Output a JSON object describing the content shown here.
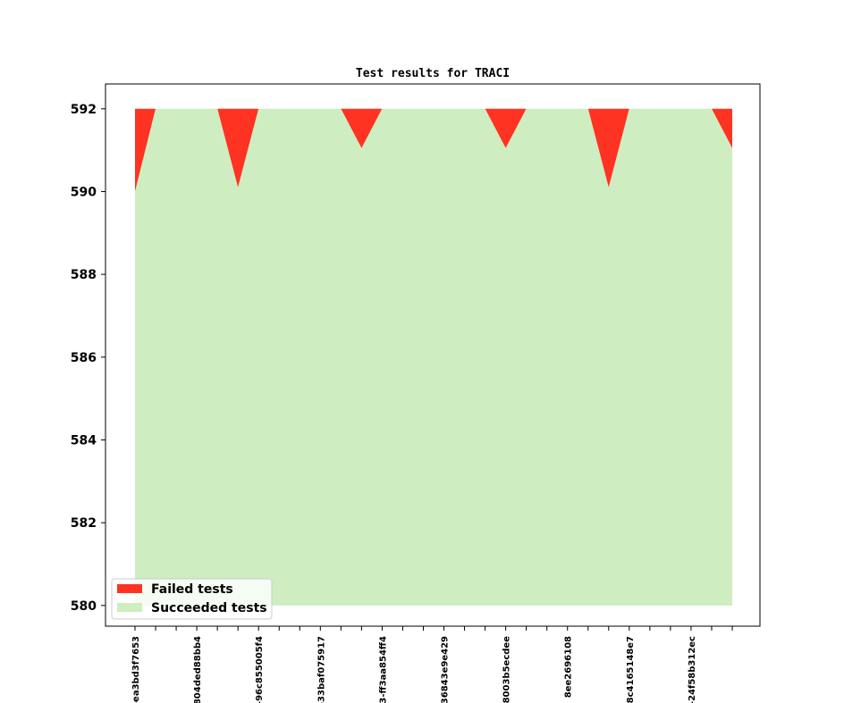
{
  "chart_data": {
    "type": "area",
    "title": "Test results for TRACI",
    "xlabel": "",
    "ylabel": "",
    "ylim": [
      579.5,
      592.6
    ],
    "yticks": [
      580,
      582,
      584,
      586,
      588,
      590,
      592
    ],
    "x_labels": [
      "-ea3bd3f7653",
      "804ded88bb4",
      "-96c855005f4",
      "-33baf075917",
      "3-ff3aa854ff4",
      "36843e9e429",
      "8003b5ecdee",
      "8ee2696108",
      "8c4165148e7",
      "-24f58b312ec"
    ],
    "x": [
      0,
      1,
      2,
      3,
      4,
      5,
      6,
      7,
      8,
      9,
      10,
      11,
      12,
      13,
      14,
      15,
      16,
      17,
      18,
      19,
      20,
      21,
      22,
      23,
      24,
      25,
      26,
      27,
      28,
      29
    ],
    "series": [
      {
        "name": "Failed tests",
        "color": "#ff3322",
        "values": [
          590,
          592,
          592,
          592,
          592,
          590.1,
          592,
          592,
          592,
          592,
          592,
          591.05,
          592,
          592,
          592,
          592,
          592,
          592,
          591.05,
          592,
          592,
          592,
          592,
          590.1,
          592,
          592,
          592,
          592,
          592,
          591.05
        ]
      },
      {
        "name": "Succeeded tests",
        "color": "#ceedc0",
        "values": [
          590,
          592,
          592,
          592,
          592,
          590.1,
          592,
          592,
          592,
          592,
          592,
          591.05,
          592,
          592,
          592,
          592,
          592,
          592,
          591.05,
          592,
          592,
          592,
          592,
          590.1,
          592,
          592,
          592,
          592,
          592,
          591.05
        ]
      }
    ],
    "total": 592,
    "baseline": 580,
    "legend_position": "lower-left",
    "grid": false
  }
}
